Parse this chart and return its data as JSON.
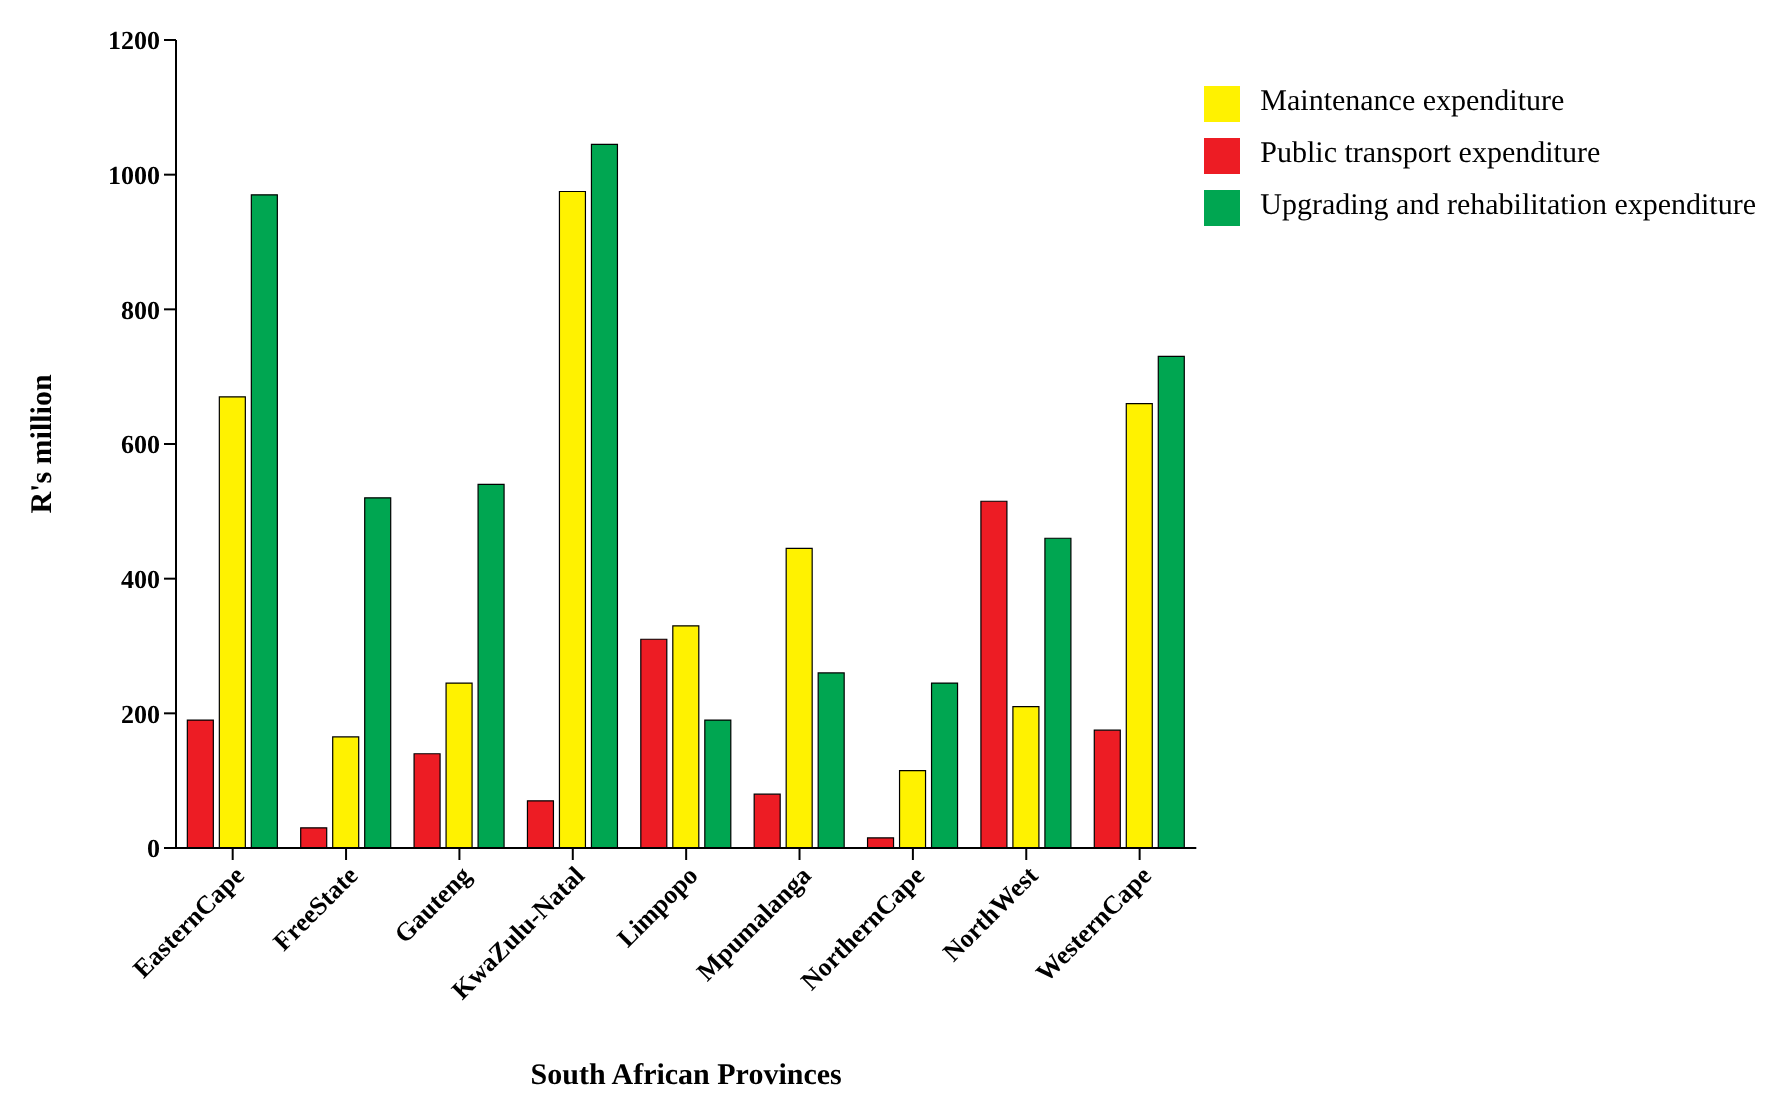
{
  "chart_data": {
    "type": "bar",
    "xlabel": "South African Provinces",
    "ylabel": "R's million",
    "categories": [
      "EasternCape",
      "FreeState",
      "Gauteng",
      "KwaZulu-Natal",
      "Limpopo",
      "Mpumalanga",
      "NorthernCape",
      "NorthWest",
      "WesternCape"
    ],
    "series": [
      {
        "name": "Public transport expenditure",
        "color": "#ed1c24",
        "values": [
          190,
          30,
          140,
          70,
          310,
          80,
          15,
          515,
          175
        ]
      },
      {
        "name": "Maintenance expenditure",
        "color": "#fff200",
        "values": [
          670,
          165,
          245,
          975,
          330,
          445,
          115,
          210,
          660
        ]
      },
      {
        "name": "Upgrading and rehabilitation expenditure",
        "color": "#00a651",
        "values": [
          970,
          520,
          540,
          1045,
          190,
          260,
          245,
          460,
          730
        ]
      }
    ],
    "ylim": [
      0,
      1200
    ],
    "yticks": [
      0,
      200,
      400,
      600,
      800,
      1000,
      1200
    ],
    "grid": false,
    "legend": "top right"
  }
}
